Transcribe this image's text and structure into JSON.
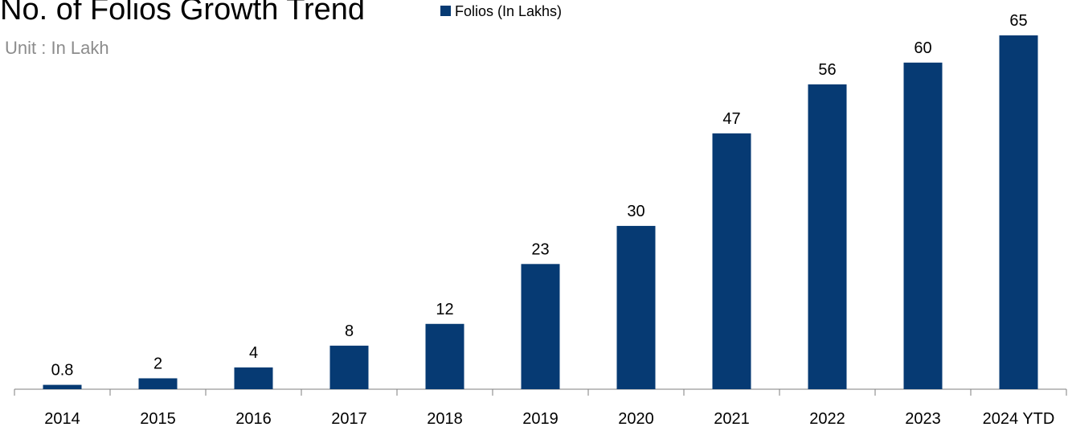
{
  "chart_data": {
    "type": "bar",
    "title": "No. of Folios Growth Trend",
    "subtitle": "Unit : In Lakh",
    "categories": [
      "2014",
      "2015",
      "2016",
      "2017",
      "2018",
      "2019",
      "2020",
      "2021",
      "2022",
      "2023",
      "2024 YTD"
    ],
    "series": [
      {
        "name": "Folios (In Lakhs)",
        "color": "#063a73",
        "values": [
          0.8,
          2,
          4,
          8,
          12,
          23,
          30,
          47,
          56,
          60,
          65
        ]
      }
    ],
    "ylim": [
      0,
      65
    ],
    "legend": "top"
  }
}
